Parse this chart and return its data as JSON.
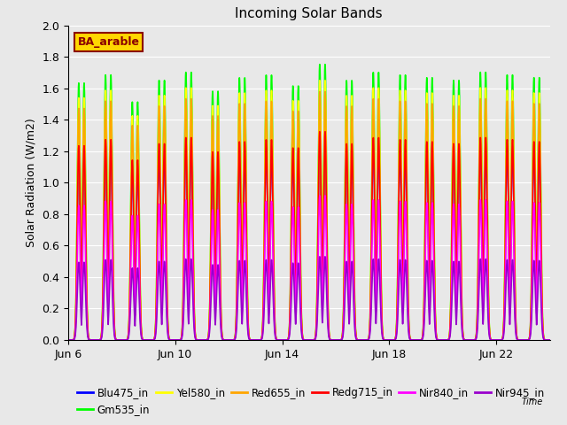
{
  "title": "Incoming Solar Bands",
  "ylabel": "Solar Radiation (W/m2)",
  "xlabel": "Time",
  "annotation_text": "BA_arable",
  "annotation_color": "#8B0000",
  "annotation_bg": "#FFD700",
  "ylim": [
    0.0,
    2.0
  ],
  "yticks": [
    0.0,
    0.2,
    0.4,
    0.6,
    0.8,
    1.0,
    1.2,
    1.4,
    1.6,
    1.8,
    2.0
  ],
  "x_tick_labels": [
    "Jun 6",
    "Jun 10",
    "Jun 14",
    "Jun 18",
    "Jun 22"
  ],
  "x_tick_positions": [
    0,
    4,
    8,
    12,
    16
  ],
  "num_days": 18,
  "series": [
    {
      "name": "Blu475_in",
      "color": "#0000FF",
      "peak": 1.28,
      "lw": 1.2
    },
    {
      "name": "Gm535_in",
      "color": "#00FF00",
      "peak": 1.72,
      "lw": 1.2
    },
    {
      "name": "Yel580_in",
      "color": "#FFFF00",
      "peak": 1.62,
      "lw": 1.2
    },
    {
      "name": "Red655_in",
      "color": "#FFA500",
      "peak": 1.55,
      "lw": 1.2
    },
    {
      "name": "Redg715_in",
      "color": "#FF0000",
      "peak": 1.3,
      "lw": 1.2
    },
    {
      "name": "Nir840_in",
      "color": "#FF00FF",
      "peak": 0.9,
      "lw": 1.2
    },
    {
      "name": "Nir945_in",
      "color": "#9900CC",
      "peak": 0.52,
      "lw": 1.2
    }
  ],
  "day_peak_variations": [
    0.95,
    0.98,
    0.88,
    0.96,
    0.99,
    0.92,
    0.97,
    0.98,
    0.94,
    1.02,
    0.96,
    0.99,
    0.98,
    0.97,
    0.96,
    0.99,
    0.98,
    0.97
  ],
  "background_color": "#E8E8E8",
  "plot_bg_color": "#E8E8E8",
  "grid_color": "#FFFFFF",
  "title_fontsize": 11,
  "label_fontsize": 9,
  "legend_fontsize": 8.5
}
